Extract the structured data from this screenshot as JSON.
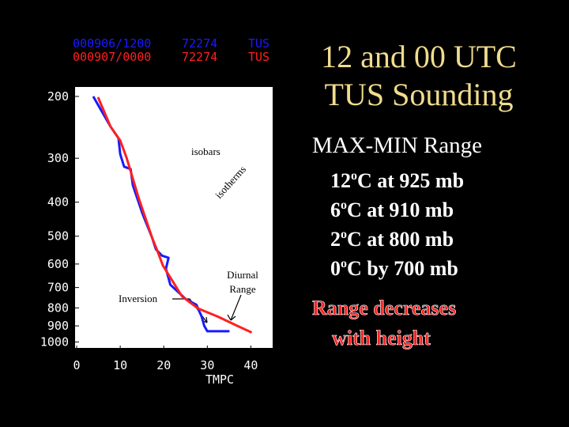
{
  "slide": {
    "title": [
      "12 and 00 UTC",
      "TUS Sounding"
    ],
    "heading": "MAX-MIN Range",
    "lines": [
      [
        "12",
        "o",
        "C at 925 mb"
      ],
      [
        "6",
        "o",
        "C at 910 mb"
      ],
      [
        "2",
        "o",
        "C at 800 mb"
      ],
      [
        "0",
        "o",
        "C by 700 mb"
      ]
    ],
    "conclusion": [
      "Range decreases",
      "with height"
    ]
  },
  "chart_data": {
    "type": "line",
    "x_label": "TMPC",
    "xlim": [
      0,
      45
    ],
    "xticks": [
      0,
      10,
      20,
      30,
      40
    ],
    "ylim": [
      1040,
      188
    ],
    "yticks": [
      200,
      300,
      400,
      500,
      600,
      700,
      800,
      900,
      1000
    ],
    "log_y": true,
    "series": [
      {
        "name": "000906/1200",
        "station": "72274",
        "site": "TUS",
        "color": "#1a1aff",
        "x": [
          3.8,
          7.8,
          9.6,
          10,
          10.9,
          12.4,
          12.9,
          15.1,
          17.3,
          18.2,
          19.6,
          21.1,
          20.5,
          21.5,
          25.1,
          27.5,
          28.7,
          29.3,
          30,
          35.1
        ],
        "values": [
          200,
          244,
          263,
          292,
          317,
          322,
          358,
          431,
          504,
          545,
          568,
          576,
          619,
          687,
          756,
          784,
          847,
          900,
          932,
          932
        ]
      },
      {
        "name": "000907/0000",
        "station": "72274",
        "site": "TUS",
        "color": "#ff2020",
        "x": [
          4.9,
          7.8,
          10,
          11.5,
          14.2,
          17.3,
          18.4,
          19.8,
          24.2,
          27.8,
          32.4,
          36.9,
          40.2
        ],
        "values": [
          201,
          244,
          267,
          300,
          388,
          504,
          545,
          606,
          742,
          802,
          847,
          900,
          940
        ]
      }
    ],
    "annotations": {
      "isobars": "isobars",
      "isotherms": "isotherms",
      "diurnal": [
        "Diurnal",
        "Range"
      ],
      "inversion": "Inversion"
    }
  }
}
